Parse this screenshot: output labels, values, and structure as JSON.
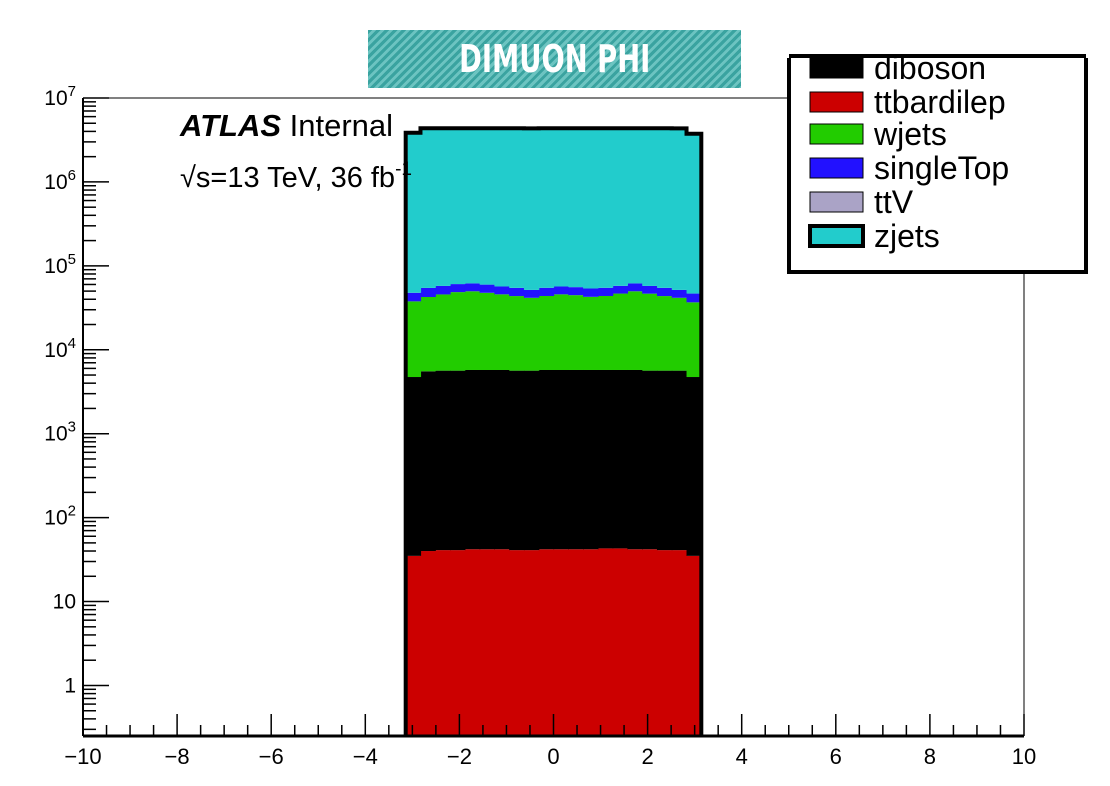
{
  "chart_data": {
    "type": "bar",
    "title": "DIMUON PHI",
    "stacked": true,
    "ylog": true,
    "xlim": [
      -10,
      10
    ],
    "ylim": [
      0.25,
      10000000
    ],
    "x_ticks": [
      -10,
      -8,
      -6,
      -4,
      -2,
      0,
      2,
      4,
      6,
      8,
      10
    ],
    "x_tick_labels": [
      "−10",
      "−8",
      "−6",
      "−4",
      "−2",
      "0",
      "2",
      "4",
      "6",
      "8",
      "10"
    ],
    "y_ticks": [
      1,
      10,
      100,
      1000,
      10000,
      100000,
      1000000,
      10000000
    ],
    "y_tick_labels": [
      {
        "base": "1",
        "exp": ""
      },
      {
        "base": "10",
        "exp": ""
      },
      {
        "base": "10",
        "exp": "2"
      },
      {
        "base": "10",
        "exp": "3"
      },
      {
        "base": "10",
        "exp": "4"
      },
      {
        "base": "10",
        "exp": "5"
      },
      {
        "base": "10",
        "exp": "6"
      },
      {
        "base": "10",
        "exp": "7"
      }
    ],
    "bin_edges": [
      -3.1416,
      -2.8274,
      -2.5133,
      -2.1991,
      -1.885,
      -1.5708,
      -1.2566,
      -0.9425,
      -0.6283,
      -0.3142,
      0,
      0.3142,
      0.6283,
      0.9425,
      1.2566,
      1.5708,
      1.885,
      2.1991,
      2.5133,
      2.8274,
      3.1416
    ],
    "series": [
      {
        "name": "ttbardilep",
        "color": "#cc0000",
        "values": [
          35,
          40,
          41,
          41,
          42,
          42,
          42,
          41,
          41,
          42,
          42,
          42,
          42,
          43,
          43,
          42,
          42,
          41,
          41,
          35
        ]
      },
      {
        "name": "diboson",
        "color": "#000000",
        "values": [
          4700,
          5500,
          5600,
          5600,
          5700,
          5700,
          5700,
          5600,
          5600,
          5700,
          5700,
          5700,
          5700,
          5700,
          5700,
          5700,
          5600,
          5600,
          5600,
          4700
        ]
      },
      {
        "name": "wjets",
        "color": "#22cc00",
        "values": [
          33000,
          37000,
          40000,
          43000,
          44000,
          42000,
          40000,
          38000,
          36000,
          38000,
          40000,
          39000,
          37000,
          38000,
          41000,
          44000,
          41000,
          38000,
          36000,
          32000
        ]
      },
      {
        "name": "singleTop",
        "color": "#2211ff",
        "values": [
          10000,
          12000,
          12000,
          12000,
          12000,
          12000,
          11000,
          11000,
          10000,
          11000,
          11000,
          11000,
          11000,
          11000,
          11000,
          12000,
          11000,
          11000,
          10000,
          10000
        ]
      },
      {
        "name": "ttV",
        "color": "#aaa3c6",
        "values": [
          20,
          22,
          22,
          23,
          23,
          23,
          23,
          22,
          22,
          23,
          23,
          23,
          23,
          23,
          23,
          23,
          22,
          22,
          22,
          20
        ]
      },
      {
        "name": "zjets",
        "color": "#22cccc",
        "values": [
          3800000,
          4300000,
          4300000,
          4300000,
          4300000,
          4300000,
          4300000,
          4300000,
          4300000,
          4300000,
          4300000,
          4300000,
          4300000,
          4300000,
          4300000,
          4300000,
          4300000,
          4300000,
          4300000,
          3700000
        ]
      }
    ],
    "legend": {
      "placement": "top-right",
      "entries": [
        "diboson",
        "ttbardilep",
        "wjets",
        "singleTop",
        "ttV",
        "zjets"
      ]
    },
    "annotations": {
      "atlas": "ATLAS",
      "atlas_suffix": "Internal",
      "lumi_sqrt": "√s=13 TeV, 36 fb",
      "lumi_exp": "-1"
    }
  }
}
